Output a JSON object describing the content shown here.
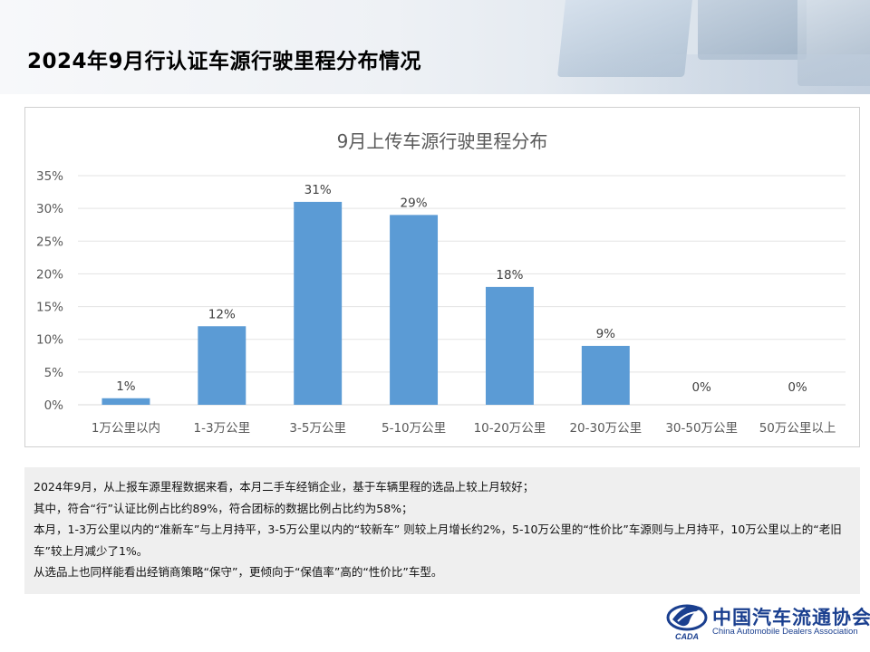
{
  "page": {
    "title": "2024年9月行认证车源行驶里程分布情况"
  },
  "chart_data": {
    "type": "bar",
    "title": "9月上传车源行驶里程分布",
    "categories": [
      "1万公里以内",
      "1-3万公里",
      "3-5万公里",
      "5-10万公里",
      "10-20万公里",
      "20-30万公里",
      "30-50万公里",
      "50万公里以上"
    ],
    "values": [
      1,
      12,
      31,
      29,
      18,
      9,
      0,
      0
    ],
    "data_labels": [
      "1%",
      "12%",
      "31%",
      "29%",
      "18%",
      "9%",
      "0%",
      "0%"
    ],
    "y_ticks": [
      "0%",
      "5%",
      "10%",
      "15%",
      "20%",
      "25%",
      "30%",
      "35%"
    ],
    "ylim": [
      0,
      35
    ],
    "grid": true,
    "legend": "none",
    "bar_color": "#5b9bd5"
  },
  "notes": [
    "2024年9月，从上报车源里程数据来看，本月二手车经销企业，基于车辆里程的选品上较上月较好；",
    "其中，符合“行”认证比例占比约89%，符合团标的数据比例占比约为58%；",
    "本月，1-3万公里以内的“准新车”与上月持平，3-5万公里以内的“较新车” 则较上月增长约2%，5-10万公里的“性价比”车源则与上月持平，10万公里以上的“老旧车”较上月减少了1%。",
    "从选品上也同样能看出经销商策略“保守”，更倾向于“保值率”高的“性价比”车型。"
  ],
  "logo": {
    "name_cn": "中国汽车流通协会",
    "name_en": "China Automobile Dealers Association",
    "abbr": "CADA"
  }
}
